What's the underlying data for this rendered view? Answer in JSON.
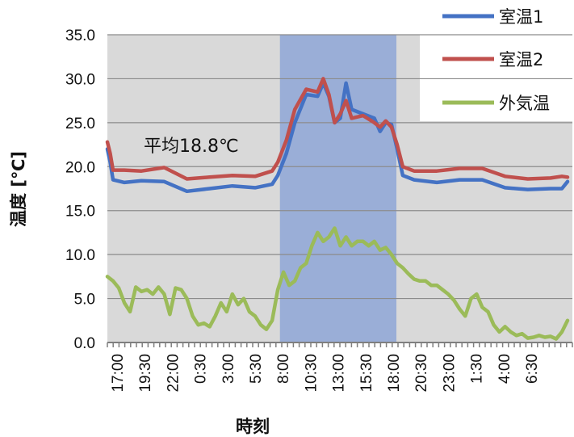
{
  "chart_data": {
    "type": "line",
    "title": "",
    "xlabel": "時刻",
    "ylabel": "温度 [℃]",
    "ylim": [
      0,
      35
    ],
    "y_ticks": [
      "0.0",
      "5.0",
      "10.0",
      "15.0",
      "20.0",
      "25.0",
      "30.0",
      "35.0"
    ],
    "x_tick_labels": [
      "17:00",
      "19:30",
      "22:00",
      "0:30",
      "3:00",
      "5:30",
      "8:00",
      "10:30",
      "13:00",
      "15:30",
      "18:00",
      "20:30",
      "23:00",
      "1:30",
      "4:00",
      "6:30"
    ],
    "grid": true,
    "legend_position": "top-right",
    "highlight_band": {
      "from": "8:00",
      "to": "17:00",
      "color": "#8ea6d6"
    },
    "annotation": "平均18.8℃",
    "series": [
      {
        "name": "室温1",
        "color": "#4472c4",
        "points": [
          [
            0,
            22.0
          ],
          [
            0.5,
            20.5
          ],
          [
            1,
            18.5
          ],
          [
            3,
            18.2
          ],
          [
            6,
            18.4
          ],
          [
            10,
            18.3
          ],
          [
            14,
            17.2
          ],
          [
            18,
            17.5
          ],
          [
            22,
            17.8
          ],
          [
            26,
            17.6
          ],
          [
            29,
            18.0
          ],
          [
            30,
            19.0
          ],
          [
            31.5,
            21.5
          ],
          [
            33,
            25.0
          ],
          [
            35,
            28.2
          ],
          [
            37,
            28.0
          ],
          [
            38,
            29.5
          ],
          [
            39,
            28.0
          ],
          [
            40,
            25.0
          ],
          [
            41,
            25.5
          ],
          [
            42,
            29.5
          ],
          [
            43,
            26.5
          ],
          [
            45,
            26.0
          ],
          [
            47,
            25.5
          ],
          [
            48,
            24.0
          ],
          [
            49,
            25.0
          ],
          [
            50,
            24.8
          ],
          [
            51,
            22.0
          ],
          [
            52,
            19.0
          ],
          [
            54,
            18.5
          ],
          [
            58,
            18.2
          ],
          [
            62,
            18.5
          ],
          [
            66,
            18.5
          ],
          [
            70,
            17.6
          ],
          [
            74,
            17.4
          ],
          [
            78,
            17.5
          ],
          [
            80,
            17.5
          ],
          [
            81,
            18.3
          ]
        ]
      },
      {
        "name": "室温2",
        "color": "#c0504d",
        "points": [
          [
            0,
            22.8
          ],
          [
            0.5,
            21.5
          ],
          [
            1,
            19.6
          ],
          [
            3,
            19.6
          ],
          [
            6,
            19.5
          ],
          [
            10,
            19.9
          ],
          [
            14,
            18.6
          ],
          [
            18,
            18.8
          ],
          [
            22,
            19.0
          ],
          [
            26,
            18.9
          ],
          [
            29,
            19.5
          ],
          [
            30,
            20.5
          ],
          [
            31.5,
            23.0
          ],
          [
            33,
            26.5
          ],
          [
            35,
            28.8
          ],
          [
            37,
            28.5
          ],
          [
            38,
            30.0
          ],
          [
            39,
            28.2
          ],
          [
            40,
            25.0
          ],
          [
            41,
            26.0
          ],
          [
            42,
            27.5
          ],
          [
            43,
            25.5
          ],
          [
            45,
            25.8
          ],
          [
            47,
            25.0
          ],
          [
            48,
            24.5
          ],
          [
            49,
            25.2
          ],
          [
            50,
            24.5
          ],
          [
            51,
            22.5
          ],
          [
            52,
            20.0
          ],
          [
            54,
            19.5
          ],
          [
            58,
            19.5
          ],
          [
            62,
            19.8
          ],
          [
            66,
            19.8
          ],
          [
            70,
            18.9
          ],
          [
            74,
            18.6
          ],
          [
            78,
            18.7
          ],
          [
            80,
            18.9
          ],
          [
            81,
            18.8
          ]
        ]
      },
      {
        "name": "外気温",
        "color": "#9bbb59",
        "points": [
          [
            0,
            7.5
          ],
          [
            1,
            7.0
          ],
          [
            2,
            6.2
          ],
          [
            3,
            4.5
          ],
          [
            4,
            3.5
          ],
          [
            5,
            6.3
          ],
          [
            6,
            5.8
          ],
          [
            7,
            6.0
          ],
          [
            8,
            5.5
          ],
          [
            9,
            6.3
          ],
          [
            10,
            5.5
          ],
          [
            11,
            3.2
          ],
          [
            12,
            6.2
          ],
          [
            13,
            6.0
          ],
          [
            14,
            5.0
          ],
          [
            15,
            3.0
          ],
          [
            16,
            2.0
          ],
          [
            17,
            2.2
          ],
          [
            18,
            1.8
          ],
          [
            19,
            3.0
          ],
          [
            20,
            4.5
          ],
          [
            21,
            3.5
          ],
          [
            22,
            5.5
          ],
          [
            23,
            4.3
          ],
          [
            24,
            5.0
          ],
          [
            25,
            3.5
          ],
          [
            26,
            3.0
          ],
          [
            27,
            2.0
          ],
          [
            28,
            1.5
          ],
          [
            29,
            2.5
          ],
          [
            30,
            6.0
          ],
          [
            31,
            8.0
          ],
          [
            32,
            6.5
          ],
          [
            33,
            7.0
          ],
          [
            34,
            8.5
          ],
          [
            35,
            9.0
          ],
          [
            36,
            11.0
          ],
          [
            37,
            12.5
          ],
          [
            38,
            11.5
          ],
          [
            39,
            12.0
          ],
          [
            40,
            13.0
          ],
          [
            41,
            11.0
          ],
          [
            42,
            12.0
          ],
          [
            43,
            11.0
          ],
          [
            44,
            11.5
          ],
          [
            45,
            11.5
          ],
          [
            46,
            11.0
          ],
          [
            47,
            11.5
          ],
          [
            48,
            10.5
          ],
          [
            49,
            10.8
          ],
          [
            50,
            10.0
          ],
          [
            51,
            9.0
          ],
          [
            52,
            8.5
          ],
          [
            53,
            7.8
          ],
          [
            54,
            7.2
          ],
          [
            55,
            7.0
          ],
          [
            56,
            7.0
          ],
          [
            57,
            6.5
          ],
          [
            58,
            6.5
          ],
          [
            59,
            6.0
          ],
          [
            60,
            5.5
          ],
          [
            61,
            4.8
          ],
          [
            62,
            3.8
          ],
          [
            63,
            3.0
          ],
          [
            64,
            5.0
          ],
          [
            65,
            5.5
          ],
          [
            66,
            4.0
          ],
          [
            67,
            3.5
          ],
          [
            68,
            2.0
          ],
          [
            69,
            1.2
          ],
          [
            70,
            1.8
          ],
          [
            71,
            1.2
          ],
          [
            72,
            0.8
          ],
          [
            73,
            1.0
          ],
          [
            74,
            0.5
          ],
          [
            75,
            0.6
          ],
          [
            76,
            0.8
          ],
          [
            77,
            0.6
          ],
          [
            78,
            0.7
          ],
          [
            79,
            0.4
          ],
          [
            80,
            1.2
          ],
          [
            81,
            2.5
          ]
        ]
      }
    ]
  }
}
